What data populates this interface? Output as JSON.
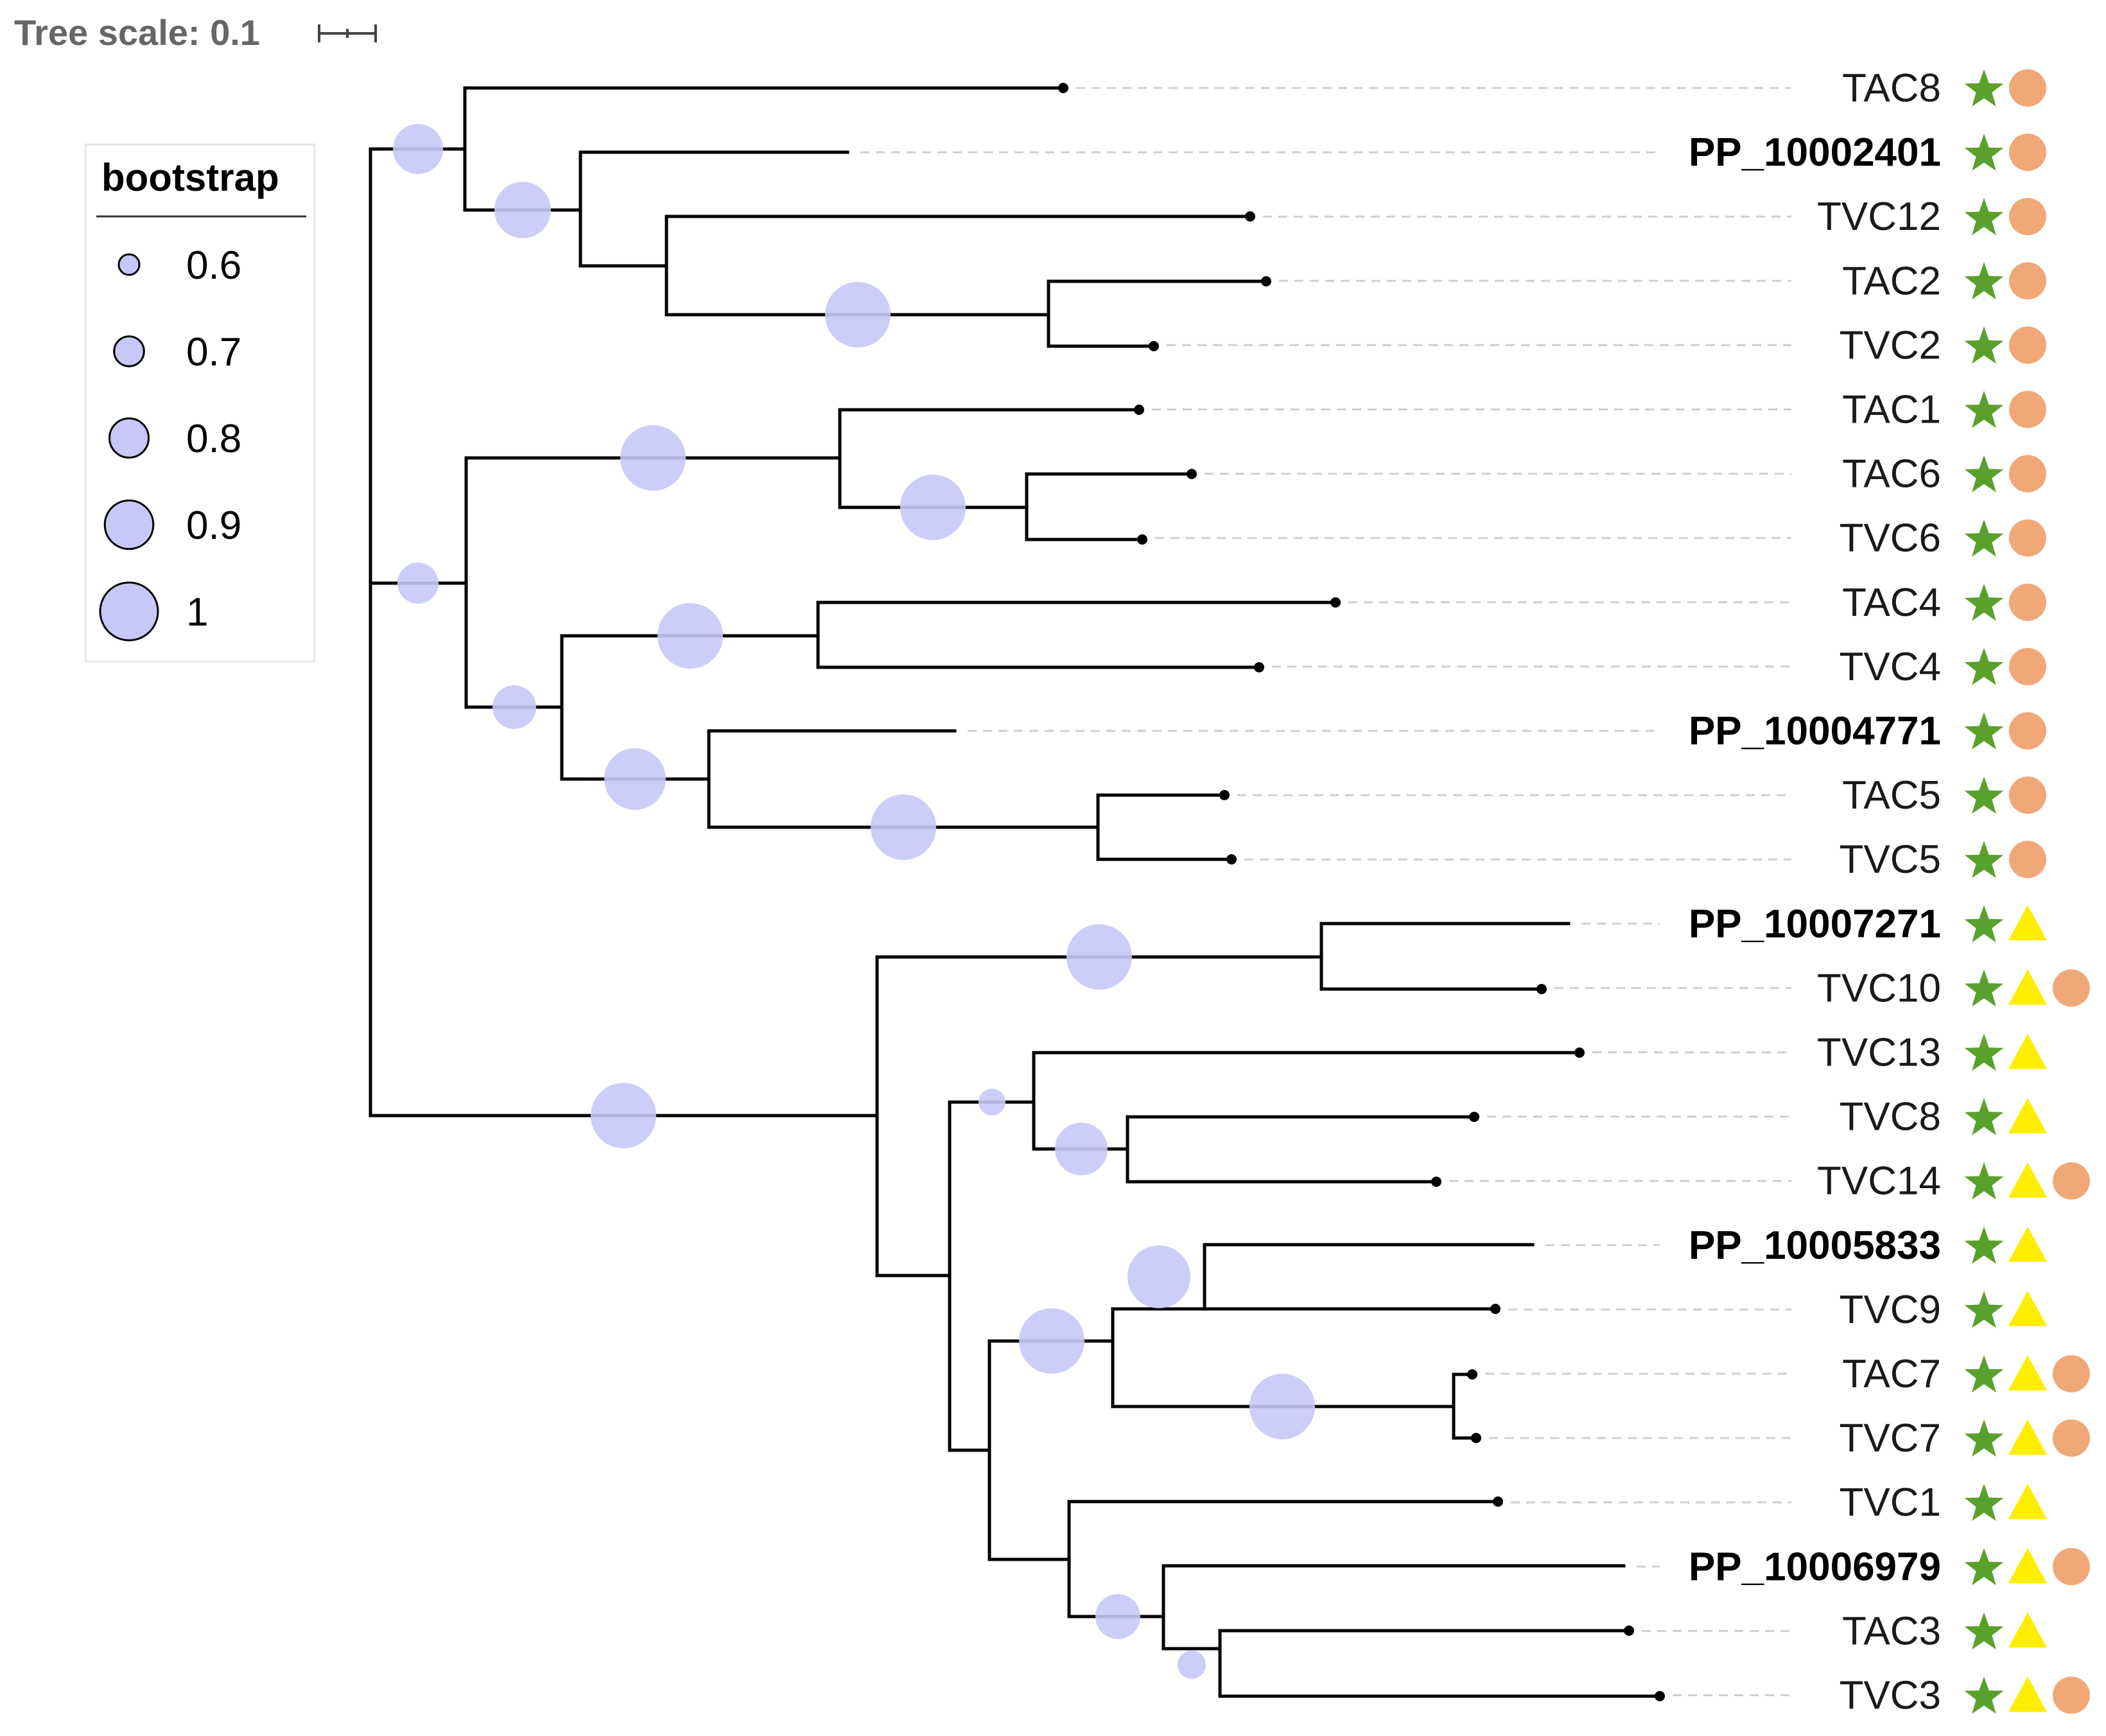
{
  "tree_scale": {
    "label": "Tree scale: 0.1"
  },
  "legend": {
    "title": "bootstrap",
    "entries": [
      {
        "label": "0.6",
        "value": 0.6
      },
      {
        "label": "0.7",
        "value": 0.7
      },
      {
        "label": "0.8",
        "value": 0.8
      },
      {
        "label": "0.9",
        "value": 0.9
      },
      {
        "label": "1",
        "value": 1.0
      }
    ]
  },
  "colors": {
    "star": "#5aa02c",
    "circle": "#f0a878",
    "triangle": "#ffee00",
    "bootstrap": "#c8c8f8",
    "branch": "#000000"
  },
  "leaves": [
    {
      "name": "TAC8",
      "bold": false,
      "markers": [
        "star",
        "circle"
      ]
    },
    {
      "name": "PP_10002401",
      "bold": true,
      "markers": [
        "star",
        "circle"
      ]
    },
    {
      "name": "TVC12",
      "bold": false,
      "markers": [
        "star",
        "circle"
      ]
    },
    {
      "name": "TAC2",
      "bold": false,
      "markers": [
        "star",
        "circle"
      ]
    },
    {
      "name": "TVC2",
      "bold": false,
      "markers": [
        "star",
        "circle"
      ]
    },
    {
      "name": "TAC1",
      "bold": false,
      "markers": [
        "star",
        "circle"
      ]
    },
    {
      "name": "TAC6",
      "bold": false,
      "markers": [
        "star",
        "circle"
      ]
    },
    {
      "name": "TVC6",
      "bold": false,
      "markers": [
        "star",
        "circle"
      ]
    },
    {
      "name": "TAC4",
      "bold": false,
      "markers": [
        "star",
        "circle"
      ]
    },
    {
      "name": "TVC4",
      "bold": false,
      "markers": [
        "star",
        "circle"
      ]
    },
    {
      "name": "PP_10004771",
      "bold": true,
      "markers": [
        "star",
        "circle"
      ]
    },
    {
      "name": "TAC5",
      "bold": false,
      "markers": [
        "star",
        "circle"
      ]
    },
    {
      "name": "TVC5",
      "bold": false,
      "markers": [
        "star",
        "circle"
      ]
    },
    {
      "name": "PP_10007271",
      "bold": true,
      "markers": [
        "star",
        "triangle"
      ]
    },
    {
      "name": "TVC10",
      "bold": false,
      "markers": [
        "star",
        "triangle",
        "circle"
      ]
    },
    {
      "name": "TVC13",
      "bold": false,
      "markers": [
        "star",
        "triangle"
      ]
    },
    {
      "name": "TVC8",
      "bold": false,
      "markers": [
        "star",
        "triangle"
      ]
    },
    {
      "name": "TVC14",
      "bold": false,
      "markers": [
        "star",
        "triangle",
        "circle"
      ]
    },
    {
      "name": "PP_10005833",
      "bold": true,
      "markers": [
        "star",
        "triangle"
      ]
    },
    {
      "name": "TVC9",
      "bold": false,
      "markers": [
        "star",
        "triangle"
      ]
    },
    {
      "name": "TAC7",
      "bold": false,
      "markers": [
        "star",
        "triangle",
        "circle"
      ]
    },
    {
      "name": "TVC7",
      "bold": false,
      "markers": [
        "star",
        "triangle",
        "circle"
      ]
    },
    {
      "name": "TVC1",
      "bold": false,
      "markers": [
        "star",
        "triangle"
      ]
    },
    {
      "name": "PP_10006979",
      "bold": true,
      "markers": [
        "star",
        "triangle",
        "circle"
      ]
    },
    {
      "name": "TAC3",
      "bold": false,
      "markers": [
        "star",
        "triangle"
      ]
    },
    {
      "name": "TVC3",
      "bold": false,
      "markers": [
        "star",
        "triangle",
        "circle"
      ]
    }
  ]
}
